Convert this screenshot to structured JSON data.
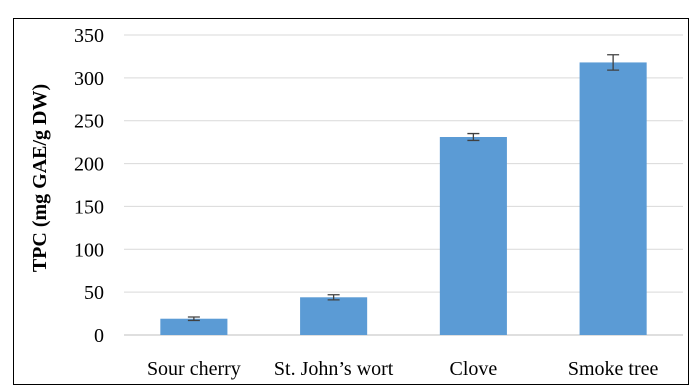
{
  "chart_data": {
    "type": "bar",
    "categories": [
      "Sour cherry",
      "St. John’s wort",
      "Clove",
      "Smoke tree"
    ],
    "values": [
      19,
      44,
      231,
      318
    ],
    "errors": [
      2,
      3,
      4,
      9
    ],
    "title": "",
    "xlabel": "",
    "ylabel": "TPC (mg GAE/g DW)",
    "ylim": [
      0,
      350
    ],
    "yticks": [
      0,
      50,
      100,
      150,
      200,
      250,
      300,
      350
    ],
    "grid": true,
    "legend": "none",
    "bar_color": "#5b9bd5"
  }
}
